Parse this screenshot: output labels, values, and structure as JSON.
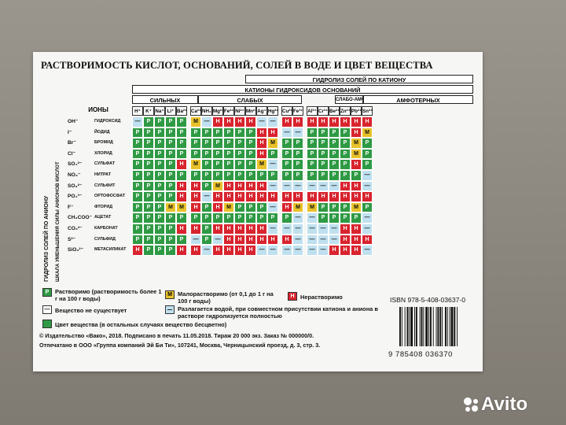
{
  "title": "РАСТВОРИМОСТЬ КИСЛОТ, ОСНОВАНИЙ, СОЛЕЙ В ВОДЕ И ЦВЕТ ВЕЩЕСТВА",
  "header": {
    "hydrolysis_cation": "ГИДРОЛИЗ СОЛЕЙ ПО КАТИОНУ",
    "cations_hydroxides": "КАТИОНЫ ГИДРОКСИДОВ ОСНОВАНИЙ",
    "strong": "СИЛЬНЫХ",
    "weak": "СЛАБЫХ",
    "weak_amph": "СЛАБО-АМФ.",
    "amphoteric": "АМФОТЕРНЫХ",
    "ions": "ИОНЫ"
  },
  "side_labels": {
    "anion_strength": "ШКАЛА УМЕНЬШЕНИЯ СИЛЫ АНИОНОВ КИСЛОТ",
    "hydrolysis_anion": "ГИДРОЛИЗ СОЛЕЙ ПО АНИОНУ"
  },
  "cations": [
    "H⁺",
    "K⁺",
    "Na⁺",
    "Li⁺",
    "Ba²⁺",
    "Ca²⁺",
    "NH₄⁺",
    "Mg²⁺",
    "Fe²⁺",
    "Ni²⁺",
    "Mn²⁺",
    "Ag⁺",
    "Hg²⁺",
    "Cu²⁺",
    "Fe³⁺",
    "Al³⁺",
    "Cr³⁺",
    "Be²⁺",
    "Zn²⁺",
    "Pb²⁺",
    "Sn²⁺"
  ],
  "anions": [
    {
      "ion": "OH⁻",
      "name": "ГИДРОКСИД"
    },
    {
      "ion": "I⁻",
      "name": "ЙОДИД"
    },
    {
      "ion": "Br⁻",
      "name": "БРОМИД"
    },
    {
      "ion": "Cl⁻",
      "name": "ХЛОРИД"
    },
    {
      "ion": "SO₄²⁻",
      "name": "СУЛЬФАТ"
    },
    {
      "ion": "NO₃⁻",
      "name": "НИТРАТ"
    },
    {
      "ion": "SO₃²⁻",
      "name": "СУЛЬФИТ"
    },
    {
      "ion": "PO₄³⁻",
      "name": "ОРТОФОСФАТ"
    },
    {
      "ion": "F⁻",
      "name": "ФТОРИД"
    },
    {
      "ion": "CH₃COO⁻",
      "name": "АЦЕТАТ"
    },
    {
      "ion": "CO₃²⁻",
      "name": "КАРБОНАТ"
    },
    {
      "ion": "S²⁻",
      "name": "СУЛЬФИД"
    },
    {
      "ion": "SiO₃²⁻",
      "name": "МЕТАСИЛИКАТ"
    }
  ],
  "cells": [
    [
      "—",
      "Р",
      "Р",
      "Р",
      "Р",
      "М",
      "—",
      "Н",
      "Н",
      "Н",
      "Н",
      "—",
      "—",
      "Н",
      "Н",
      "Н",
      "Н",
      "Н",
      "Н",
      "Н",
      "Н"
    ],
    [
      "Р",
      "Р",
      "Р",
      "Р",
      "Р",
      "Р",
      "Р",
      "Р",
      "Р",
      "Р",
      "Р",
      "Н",
      "Н",
      "—",
      "—",
      "Р",
      "Р",
      "Р",
      "Р",
      "Н",
      "М"
    ],
    [
      "Р",
      "Р",
      "Р",
      "Р",
      "Р",
      "Р",
      "Р",
      "Р",
      "Р",
      "Р",
      "Р",
      "Н",
      "М",
      "Р",
      "Р",
      "Р",
      "Р",
      "Р",
      "Р",
      "М",
      "Р"
    ],
    [
      "Р",
      "Р",
      "Р",
      "Р",
      "Р",
      "Р",
      "Р",
      "Р",
      "Р",
      "Р",
      "Р",
      "Н",
      "Р",
      "Р",
      "Р",
      "Р",
      "Р",
      "Р",
      "Р",
      "М",
      "Р"
    ],
    [
      "Р",
      "Р",
      "Р",
      "Р",
      "Н",
      "М",
      "Р",
      "Р",
      "Р",
      "Р",
      "Р",
      "М",
      "—",
      "Р",
      "Р",
      "Р",
      "Р",
      "Р",
      "Р",
      "Н",
      "Р"
    ],
    [
      "Р",
      "Р",
      "Р",
      "Р",
      "Р",
      "Р",
      "Р",
      "Р",
      "Р",
      "Р",
      "Р",
      "Р",
      "Р",
      "Р",
      "Р",
      "Р",
      "Р",
      "Р",
      "Р",
      "Р",
      "—"
    ],
    [
      "Р",
      "Р",
      "Р",
      "Р",
      "Н",
      "Н",
      "Р",
      "М",
      "Н",
      "Н",
      "Н",
      "Н",
      "—",
      "—",
      "—",
      "—",
      "—",
      "—",
      "Н",
      "Н",
      "—"
    ],
    [
      "Р",
      "Р",
      "Р",
      "Р",
      "Н",
      "Н",
      "—",
      "Н",
      "Н",
      "Н",
      "Н",
      "Н",
      "Н",
      "Н",
      "Н",
      "Н",
      "Н",
      "Н",
      "Н",
      "Н",
      "Н"
    ],
    [
      "Р",
      "Р",
      "Р",
      "М",
      "М",
      "Н",
      "Р",
      "Н",
      "М",
      "Р",
      "Р",
      "Р",
      "—",
      "Н",
      "М",
      "М",
      "Р",
      "Р",
      "Р",
      "М",
      "Р"
    ],
    [
      "Р",
      "Р",
      "Р",
      "Р",
      "Р",
      "Р",
      "Р",
      "Р",
      "Р",
      "Р",
      "Р",
      "Р",
      "Р",
      "Р",
      "—",
      "—",
      "Р",
      "Р",
      "Р",
      "Р",
      "—"
    ],
    [
      "Р",
      "Р",
      "Р",
      "Р",
      "Н",
      "Н",
      "Р",
      "Н",
      "Н",
      "Н",
      "Н",
      "Н",
      "—",
      "—",
      "—",
      "—",
      "—",
      "—",
      "Н",
      "Н",
      "—"
    ],
    [
      "Р",
      "Р",
      "Р",
      "Р",
      "Р",
      "—",
      "Р",
      "—",
      "Н",
      "Н",
      "Н",
      "Н",
      "Н",
      "Н",
      "—",
      "—",
      "—",
      "—",
      "Н",
      "Н",
      "Н"
    ],
    [
      "Н",
      "Р",
      "Р",
      "Р",
      "Н",
      "Н",
      "—",
      "Н",
      "Н",
      "Н",
      "Н",
      "—",
      "—",
      "—",
      "—",
      "—",
      "—",
      "Н",
      "Н",
      "Н",
      "—"
    ]
  ],
  "legend": {
    "soluble_sym": "Р",
    "soluble": "Растворимо (растворимость более 1 г на 100 г воды)",
    "slight_sym": "М",
    "slight": "Малорастворимо (от 0,1 до 1 г на 100 г воды)",
    "insoluble_sym": "Н",
    "insoluble": "Нерастворимо",
    "none_sym": "—",
    "none": "Вещество не существует",
    "decomp": "Разлагается водой, при совместном присутствии катиона и аниона в растворе гидролизуется полностью",
    "color": "Цвет вещества (в остальных случаях вещество бесцветно)"
  },
  "colors": {
    "Р": "#2f9a44",
    "М": "#e8c22a",
    "Н": "#d8242e",
    "—": "#bfe0ef",
    "hydro": "#1b1b1b"
  },
  "footer": {
    "line1": "© Издательство «Вако», 2018. Подписано в печать 11.05.2018. Тираж 20 000 экз. Заказ № 000000/0.",
    "line2": "Отпечатано в ООО «Группа компаний Эй Би Ти», 107241, Москва, Черницынский проезд, д. 3, стр. 3."
  },
  "isbn": "ISBN 978-5-408-03637-0",
  "barcode_number": "9 785408 036370",
  "watermark": "Avito"
}
